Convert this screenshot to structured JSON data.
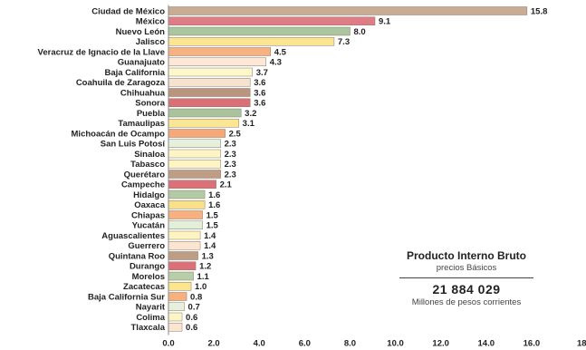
{
  "chart_data": {
    "type": "bar",
    "orientation": "horizontal",
    "categories": [
      "Ciudad de México",
      "México",
      "Nuevo León",
      "Jalisco",
      "Veracruz de Ignacio de la Llave",
      "Guanajuato",
      "Baja California",
      "Coahuila de Zaragoza",
      "Chihuahua",
      "Sonora",
      "Puebla",
      "Tamaulipas",
      "Michoacán de Ocampo",
      "San Luis Potosí",
      "Sinaloa",
      "Tabasco",
      "Querétaro",
      "Campeche",
      "Hidalgo",
      "Oaxaca",
      "Chiapas",
      "Yucatán",
      "Aguascalientes",
      "Guerrero",
      "Quintana Roo",
      "Durango",
      "Morelos",
      "Zacatecas",
      "Baja California Sur",
      "Nayarit",
      "Colima",
      "Tlaxcala"
    ],
    "values": [
      15.8,
      9.1,
      8.0,
      7.3,
      4.5,
      4.3,
      3.7,
      3.6,
      3.6,
      3.6,
      3.2,
      3.1,
      2.5,
      2.3,
      2.3,
      2.3,
      2.3,
      2.1,
      1.6,
      1.6,
      1.5,
      1.5,
      1.4,
      1.4,
      1.3,
      1.2,
      1.1,
      1.0,
      0.8,
      0.7,
      0.6,
      0.6
    ],
    "value_labels": [
      "15.8",
      "9.1",
      "8.0",
      "7.3",
      "4.5",
      "4.3",
      "3.7",
      "3.6",
      "3.6",
      "3.6",
      "3.2",
      "3.1",
      "2.5",
      "2.3",
      "2.3",
      "2.3",
      "2.3",
      "2.1",
      "1.6",
      "1.6",
      "1.5",
      "1.5",
      "1.4",
      "1.4",
      "1.3",
      "1.2",
      "1.1",
      "1.0",
      "0.8",
      "0.7",
      "0.6",
      "0.6"
    ],
    "xlim": [
      0,
      18
    ],
    "xticks": [
      "0.0",
      "2.0",
      "4.0",
      "6.0",
      "8.0",
      "10.0",
      "12.0",
      "14.0",
      "16.0",
      "18.0"
    ],
    "bar_colors": [
      "#c8ac94",
      "#df7c86",
      "#abc59e",
      "#fbe593",
      "#f7b27f",
      "#fde8d8",
      "#fdf7c9",
      "#f5e3cf",
      "#b9957f",
      "#da6f77",
      "#a9c39c",
      "#fbe793",
      "#f6a977",
      "#e6f0dc",
      "#fdf6c4",
      "#fdf6c4",
      "#bf9d85",
      "#dc7078",
      "#b3cba4",
      "#fbe08a",
      "#f7b07e",
      "#e3efd8",
      "#fdf4bf",
      "#fbe4d0",
      "#bf9d85",
      "#dc7078",
      "#b7cfa8",
      "#fbe58f",
      "#f7b07e",
      "#e6f0dc",
      "#fdf6c4",
      "#fbe4d0"
    ],
    "grid": false,
    "legend": "none"
  },
  "summary": {
    "title": "Producto Interno Bruto",
    "subtitle": "precios Básicos",
    "total": "21 884 029",
    "units": "Millones de pesos corrientes"
  }
}
